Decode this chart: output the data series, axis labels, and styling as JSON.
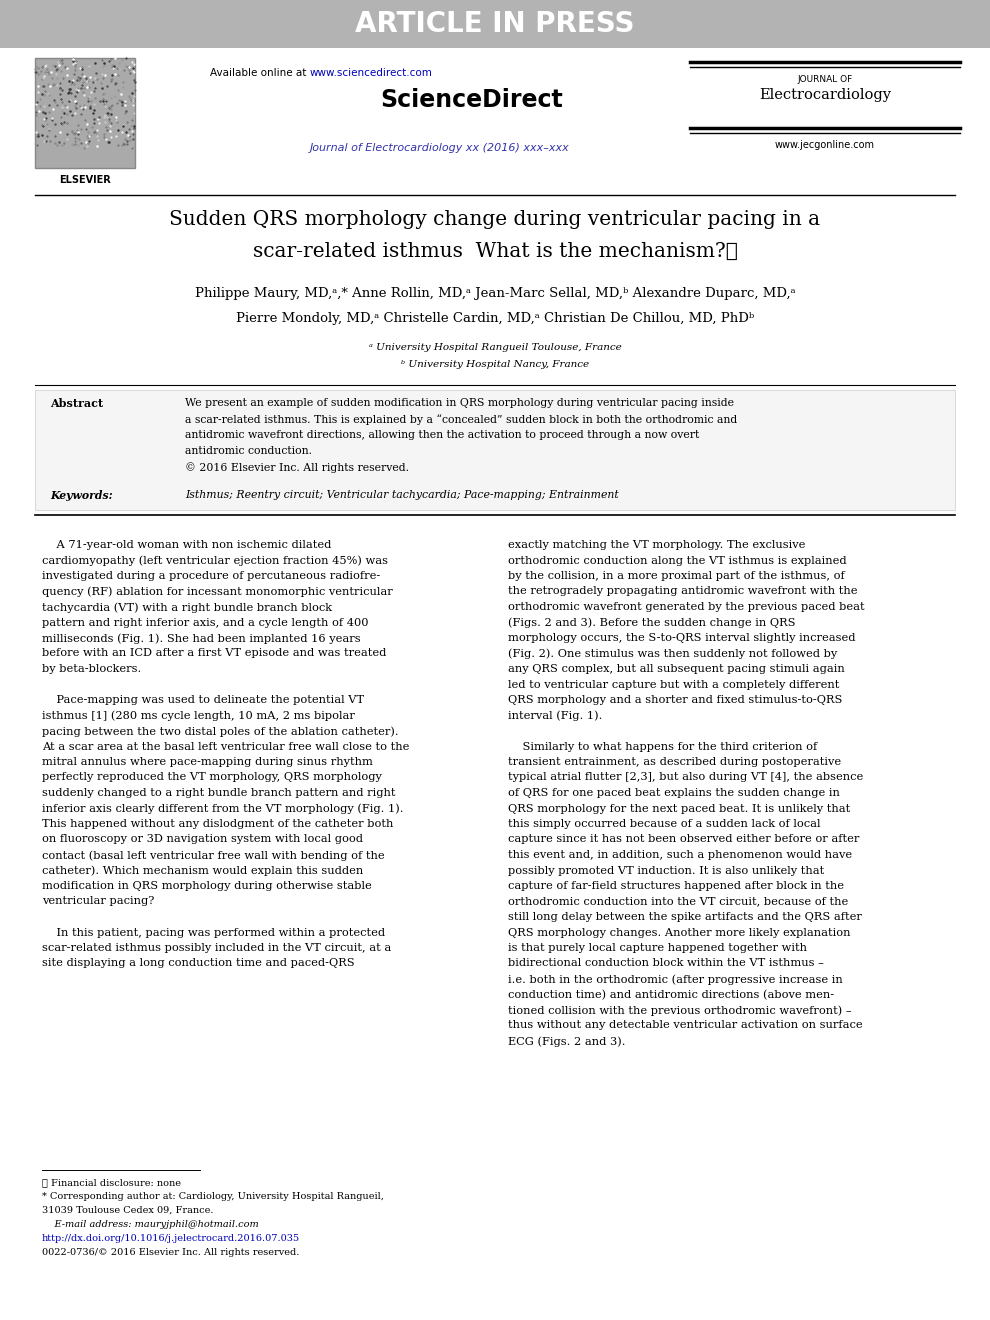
{
  "header_bg_color": "#b3b3b3",
  "header_text": "ARTICLE IN PRESS",
  "header_text_color": "#ffffff",
  "url_text": "www.sciencedirect.com",
  "url_color": "#0000bb",
  "sciencedirect_title": "ScienceDirect",
  "journal_subtitle": "Journal of Electrocardiology xx (2016) xxx–xxx",
  "journal_subtitle_color": "#3333aa",
  "journal_name_line1": "JOURNAL OF",
  "journal_name_line2": "Electrocardiology",
  "journal_website": "www.jecgonline.com",
  "paper_title_line1": "Sudden QRS morphology change during ventricular pacing in a",
  "paper_title_line2": "scar-related isthmus  What is the mechanism?★",
  "authors_line1": "Philippe Maury, MD,ᵃ,* Anne Rollin, MD,ᵃ Jean-Marc Sellal, MD,ᵇ Alexandre Duparc, MD,ᵃ",
  "authors_line2": "Pierre Mondoly, MD,ᵃ Christelle Cardin, MD,ᵃ Christian De Chillou, MD, PhDᵇ",
  "affil_a": "ᵃ University Hospital Rangueil Toulouse, France",
  "affil_b": "ᵇ University Hospital Nancy, France",
  "abstract_label": "Abstract",
  "abstract_lines": [
    "We present an example of sudden modification in QRS morphology during ventricular pacing inside",
    "a scar-related isthmus. This is explained by a “concealed” sudden block in both the orthodromic and",
    "antidromic wavefront directions, allowing then the activation to proceed through a now overt",
    "antidromic conduction.",
    "© 2016 Elsevier Inc. All rights reserved."
  ],
  "keywords_label": "Keywords:",
  "keywords_text": "Isthmus; Reentry circuit; Ventricular tachycardia; Pace-mapping; Entrainment",
  "col1_lines": [
    "    A 71-year-old woman with non ischemic dilated",
    "cardiomyopathy (left ventricular ejection fraction 45%) was",
    "investigated during a procedure of percutaneous radiofre-",
    "quency (RF) ablation for incessant monomorphic ventricular",
    "tachycardia (VT) with a right bundle branch block",
    "pattern and right inferior axis, and a cycle length of 400",
    "milliseconds (Fig. 1). She had been implanted 16 years",
    "before with an ICD after a first VT episode and was treated",
    "by beta-blockers.",
    "",
    "    Pace-mapping was used to delineate the potential VT",
    "isthmus [1] (280 ms cycle length, 10 mA, 2 ms bipolar",
    "pacing between the two distal poles of the ablation catheter).",
    "At a scar area at the basal left ventricular free wall close to the",
    "mitral annulus where pace-mapping during sinus rhythm",
    "perfectly reproduced the VT morphology, QRS morphology",
    "suddenly changed to a right bundle branch pattern and right",
    "inferior axis clearly different from the VT morphology (Fig. 1).",
    "This happened without any dislodgment of the catheter both",
    "on fluoroscopy or 3D navigation system with local good",
    "contact (basal left ventricular free wall with bending of the",
    "catheter). Which mechanism would explain this sudden",
    "modification in QRS morphology during otherwise stable",
    "ventricular pacing?",
    "",
    "    In this patient, pacing was performed within a protected",
    "scar-related isthmus possibly included in the VT circuit, at a",
    "site displaying a long conduction time and paced-QRS"
  ],
  "col2_lines": [
    "exactly matching the VT morphology. The exclusive",
    "orthodromic conduction along the VT isthmus is explained",
    "by the collision, in a more proximal part of the isthmus, of",
    "the retrogradely propagating antidromic wavefront with the",
    "orthodromic wavefront generated by the previous paced beat",
    "(Figs. 2 and 3). Before the sudden change in QRS",
    "morphology occurs, the S-to-QRS interval slightly increased",
    "(Fig. 2). One stimulus was then suddenly not followed by",
    "any QRS complex, but all subsequent pacing stimuli again",
    "led to ventricular capture but with a completely different",
    "QRS morphology and a shorter and fixed stimulus-to-QRS",
    "interval (Fig. 1).",
    "",
    "    Similarly to what happens for the third criterion of",
    "transient entrainment, as described during postoperative",
    "typical atrial flutter [2,3], but also during VT [4], the absence",
    "of QRS for one paced beat explains the sudden change in",
    "QRS morphology for the next paced beat. It is unlikely that",
    "this simply occurred because of a sudden lack of local",
    "capture since it has not been observed either before or after",
    "this event and, in addition, such a phenomenon would have",
    "possibly promoted VT induction. It is also unlikely that",
    "capture of far-field structures happened after block in the",
    "orthodromic conduction into the VT circuit, because of the",
    "still long delay between the spike artifacts and the QRS after",
    "QRS morphology changes. Another more likely explanation",
    "is that purely local capture happened together with",
    "bidirectional conduction block within the VT isthmus –",
    "i.e. both in the orthodromic (after progressive increase in",
    "conduction time) and antidromic directions (above men-",
    "tioned collision with the previous orthodromic wavefront) –",
    "thus without any detectable ventricular activation on surface",
    "ECG (Figs. 2 and 3)."
  ],
  "fn_line1": "★ Financial disclosure: none",
  "fn_line2": "* Corresponding author at: Cardiology, University Hospital Rangueil,",
  "fn_line3": "31039 Toulouse Cedex 09, France.",
  "fn_line4": "    E-mail address: mauryjphil@hotmail.com",
  "fn_line5": "http://dx.doi.org/10.1016/j.jelectrocard.2016.07.035",
  "fn_line6": "0022-0736/© 2016 Elsevier Inc. All rights reserved.",
  "fn_url_color": "#0000bb"
}
